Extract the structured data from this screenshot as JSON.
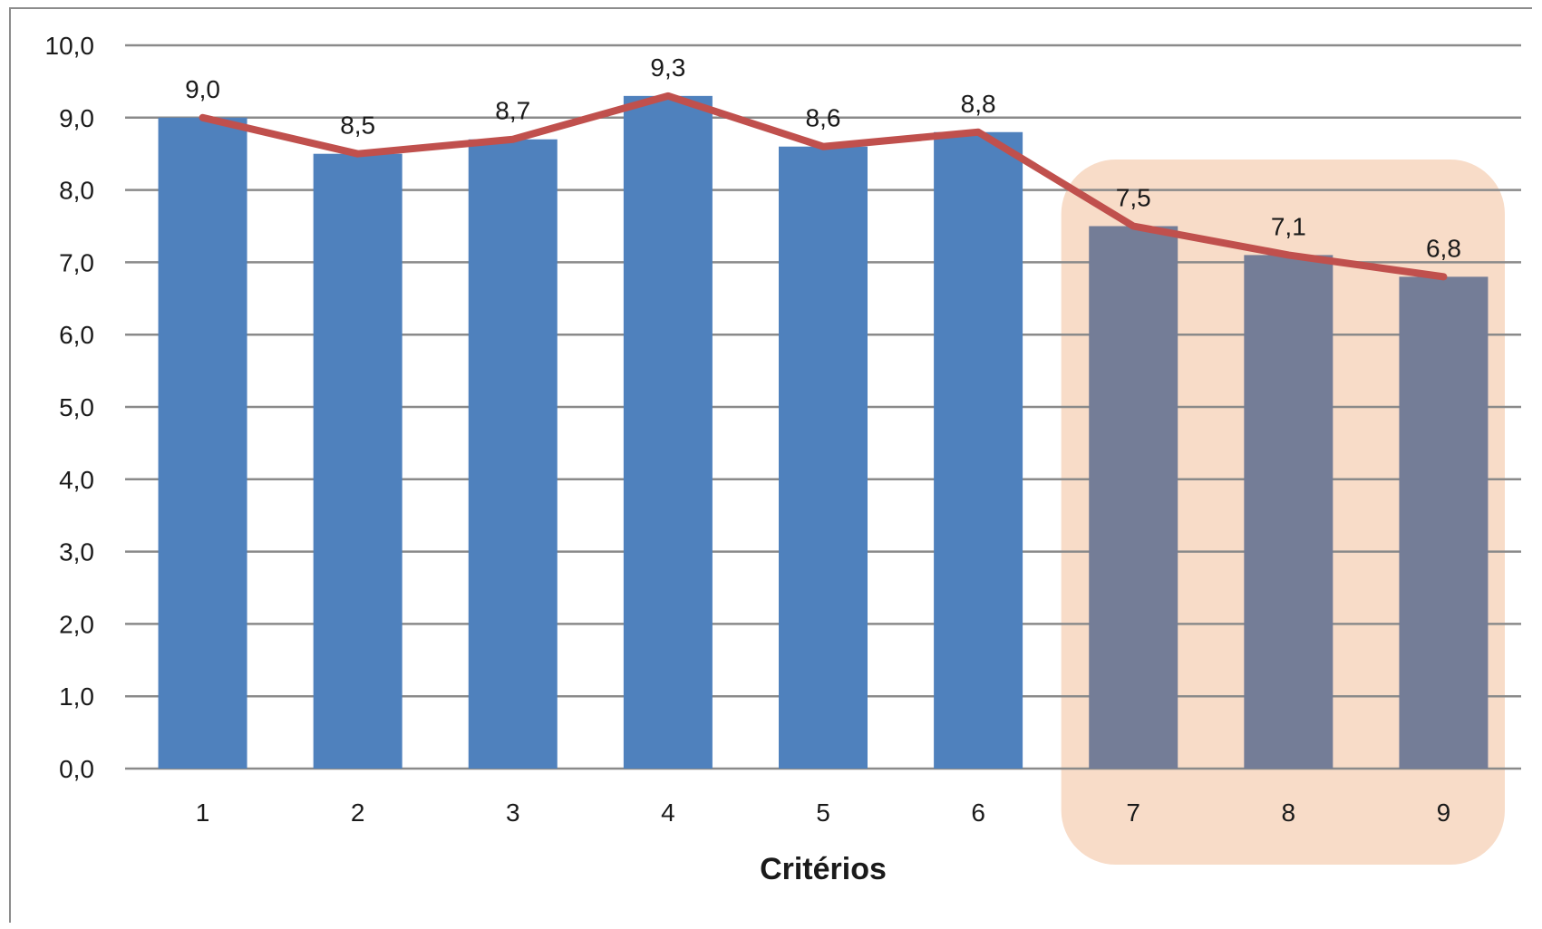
{
  "chart_data": {
    "type": "bar",
    "categories": [
      "1",
      "2",
      "3",
      "4",
      "5",
      "6",
      "7",
      "8",
      "9"
    ],
    "series": [
      {
        "type": "bar",
        "values": [
          9.0,
          8.5,
          8.7,
          9.3,
          8.6,
          8.8,
          7.5,
          7.1,
          6.8
        ],
        "colors": [
          "#4f81bd",
          "#4f81bd",
          "#4f81bd",
          "#4f81bd",
          "#4f81bd",
          "#4f81bd",
          "#747d97",
          "#747d97",
          "#747d97"
        ]
      },
      {
        "type": "line",
        "values": [
          9.0,
          8.5,
          8.7,
          9.3,
          8.6,
          8.8,
          7.5,
          7.1,
          6.8
        ],
        "color": "#c0504d"
      }
    ],
    "data_labels": [
      "9,0",
      "8,5",
      "8,7",
      "9,3",
      "8,6",
      "8,8",
      "7,5",
      "7,1",
      "6,8"
    ],
    "y_ticks": [
      "0,0",
      "1,0",
      "2,0",
      "3,0",
      "4,0",
      "5,0",
      "6,0",
      "7,0",
      "8,0",
      "9,0",
      "10,0"
    ],
    "ylim": [
      0,
      10
    ],
    "xlabel": "Critérios",
    "ylabel": "",
    "title": "",
    "grid": true,
    "highlight": {
      "from_category": "7",
      "to_category": "9",
      "color": "#f8dcc8"
    },
    "gridline_color": "#8a8a8a"
  }
}
